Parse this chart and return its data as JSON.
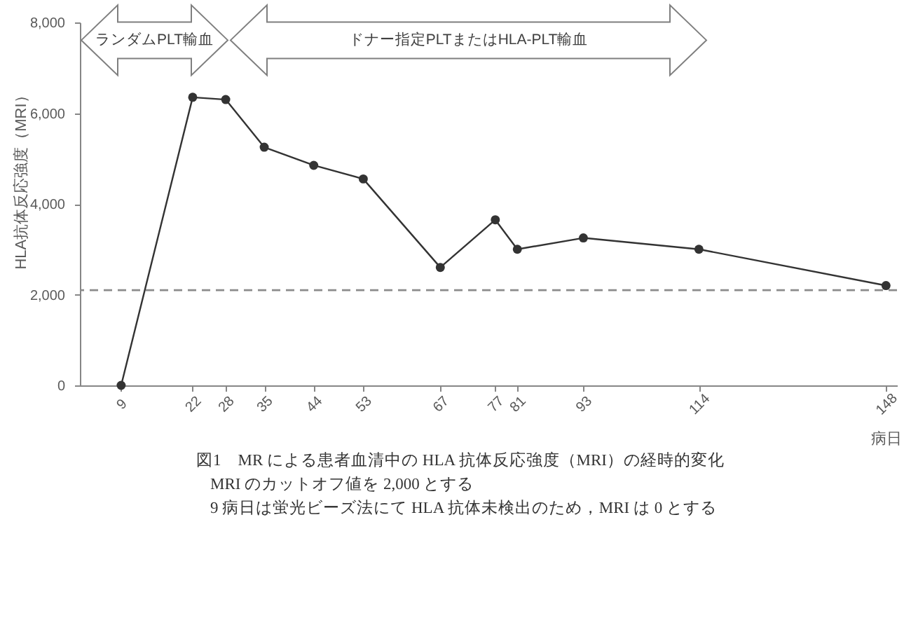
{
  "chart_data": {
    "type": "line",
    "title": "図1　MR による患者血清中の HLA 抗体反応強度（MRI）の経時的変化",
    "xlabel": "病日",
    "ylabel": "HLA抗体反応強度（MRI）",
    "annotations": [
      "ランダムPLT輸血",
      "ドナー指定PLTまたはHLA-PLT輸血",
      "MRI のカットオフ値を 2,000 とする",
      "9 病日は蛍光ビーズ法にて HLA 抗体未検出のため，MRI は 0 とする"
    ],
    "x": [
      9,
      22,
      28,
      35,
      44,
      53,
      67,
      77,
      81,
      93,
      114,
      148
    ],
    "series": [
      {
        "color": "#333333",
        "values": [
          0,
          6350,
          6300,
          5250,
          4850,
          4550,
          2600,
          3650,
          3000,
          3250,
          3000,
          2200
        ]
      }
    ],
    "xlim": [
      1.5,
      150
    ],
    "xticks": [
      9,
      22,
      28,
      35,
      44,
      53,
      67,
      77,
      81,
      93,
      114,
      148
    ],
    "ylim": [
      0,
      8000
    ],
    "yticks": [
      0,
      {
        "value": 2000,
        "label": "2,000"
      },
      {
        "value": 4000,
        "label": "4,000"
      },
      {
        "value": 6000,
        "label": "6,000"
      },
      {
        "value": 8000,
        "label": "8,000"
      }
    ],
    "ref_lines": [
      {
        "axis": "y",
        "value": 2100,
        "color": "#8c8c8c",
        "line_style": "dashed"
      }
    ],
    "grid": false,
    "marker": "circle",
    "line_style": "solid"
  }
}
